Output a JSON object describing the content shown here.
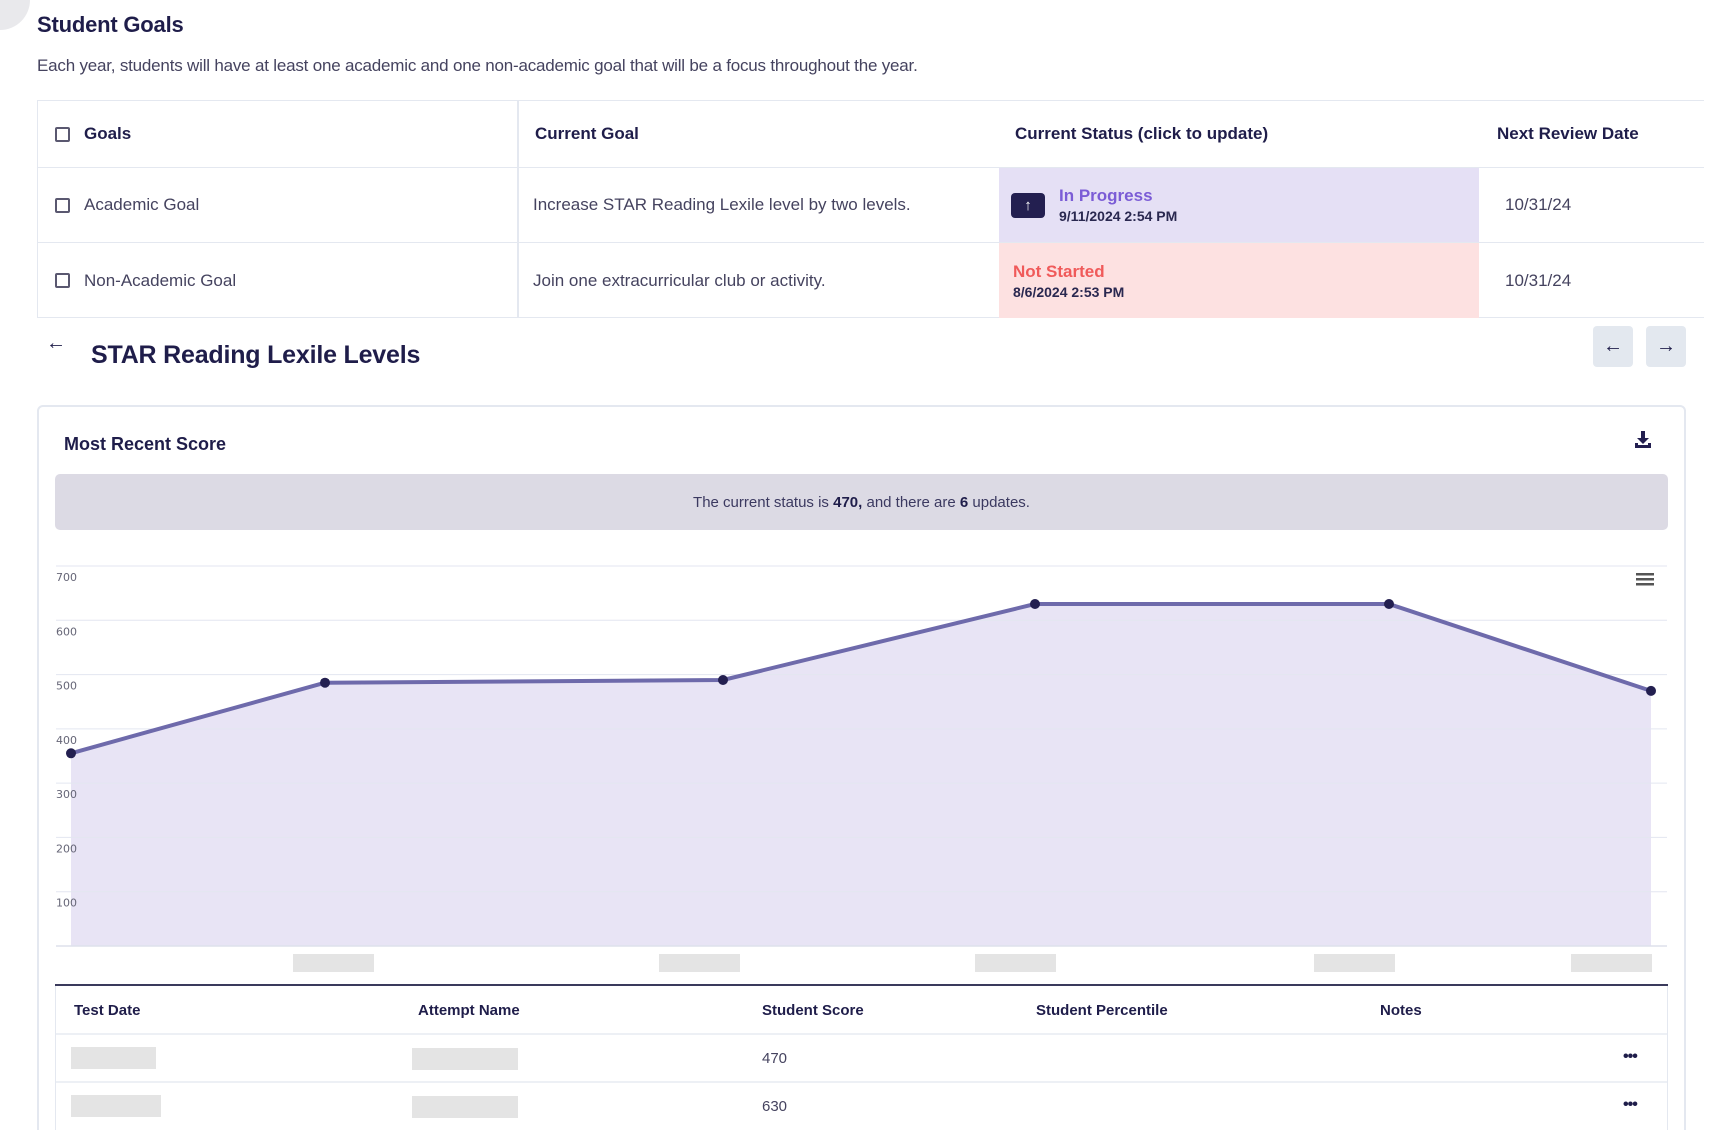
{
  "page": {
    "title": "Student Goals",
    "subtitle": "Each year, students will have at least one academic and one non-academic goal that will be a focus throughout the year."
  },
  "goals_table": {
    "headers": {
      "goals": "Goals",
      "current_goal": "Current Goal",
      "current_status": "Current Status (click to update)",
      "next_review": "Next Review Date"
    },
    "rows": [
      {
        "goal": "Academic Goal",
        "current_goal": "Increase STAR Reading Lexile level by two levels.",
        "status": "In Progress",
        "status_date": "9/11/2024 2:54 PM",
        "status_color": "#7b5cd6",
        "status_bg": "#e5e0f5",
        "next_review": "10/31/24"
      },
      {
        "goal": "Non-Academic Goal",
        "current_goal": "Join one extracurricular club or activity.",
        "status": "Not Started",
        "status_date": "8/6/2024 2:53 PM",
        "status_color": "#f05a5a",
        "status_bg": "#fde1e1",
        "next_review": "10/31/24"
      }
    ]
  },
  "section": {
    "title": "STAR Reading Lexile Levels",
    "back_icon": "arrow-left-icon",
    "prev_icon": "arrow-left-icon",
    "next_icon": "arrow-right-icon"
  },
  "card": {
    "title": "Most Recent Score",
    "download_icon": "download-icon",
    "banner": {
      "prefix": "The current status is ",
      "value": "470,",
      "middle": " and there are ",
      "count": "6",
      "suffix": " updates."
    }
  },
  "chart_data": {
    "type": "area",
    "title": "",
    "xlabel": "",
    "ylabel": "",
    "x": [
      "",
      "",
      "",
      "",
      "",
      ""
    ],
    "series": [
      {
        "name": "Student Score",
        "values": [
          355,
          485,
          490,
          630,
          630,
          470
        ]
      }
    ],
    "ylim": [
      0,
      700
    ],
    "yticks": [
      100,
      200,
      300,
      400,
      500,
      600,
      700
    ],
    "grid": true,
    "legend": "none",
    "colors": {
      "line": "#6e6aab",
      "fill": "#e8e4f5",
      "marker": "#231f50"
    },
    "x_tick_labels_redacted": 5
  },
  "scores_table": {
    "headers": [
      "Test Date",
      "Attempt Name",
      "Student Score",
      "Student Percentile",
      "Notes"
    ],
    "rows": [
      {
        "test_date": "",
        "attempt_name": "",
        "score": "470",
        "percentile": "",
        "notes": "",
        "actions": "•••"
      },
      {
        "test_date": "",
        "attempt_name": "",
        "score": "630",
        "percentile": "",
        "notes": "",
        "actions": "•••"
      }
    ]
  }
}
